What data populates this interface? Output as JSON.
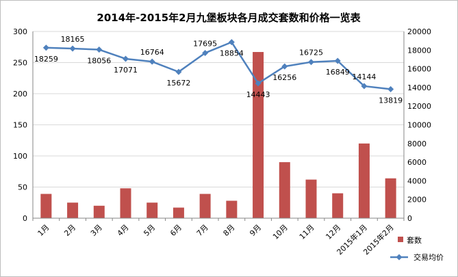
{
  "chart_data": {
    "type": "bar+line",
    "title": "2014年-2015年2月九堡板块各月成交套数和价格一览表",
    "categories": [
      "1月",
      "2月",
      "3月",
      "4月",
      "5月",
      "6月",
      "7月",
      "8月",
      "9月",
      "10月",
      "11月",
      "12月",
      "2015年1月",
      "2015年2月"
    ],
    "series": [
      {
        "name": "套数",
        "type": "bar",
        "axis": "left",
        "color": "#c0504d",
        "values": [
          39,
          25,
          20,
          48,
          25,
          17,
          39,
          28,
          267,
          90,
          62,
          40,
          120,
          64
        ]
      },
      {
        "name": "交易均价",
        "type": "line",
        "axis": "right",
        "color": "#4f81bd",
        "values": [
          18259,
          18165,
          18056,
          17071,
          16764,
          15672,
          17695,
          18854,
          14443,
          16256,
          16725,
          16849,
          14144,
          13819
        ]
      }
    ],
    "y_left": {
      "min": 0,
      "max": 300,
      "step": 50,
      "ticks": [
        "0",
        "50",
        "100",
        "150",
        "200",
        "250",
        "300"
      ]
    },
    "y_right": {
      "min": 0,
      "max": 20000,
      "step": 2000,
      "ticks": [
        "0",
        "2000",
        "4000",
        "6000",
        "8000",
        "10000",
        "12000",
        "14000",
        "16000",
        "18000",
        "20000"
      ]
    },
    "grid": true,
    "legend_position": "right",
    "data_labels": [
      "18259",
      "18165",
      "18056",
      "17071",
      "16764",
      "15672",
      "17695",
      "18854",
      "14443",
      "16256",
      "16725",
      "16849",
      "14144",
      "13819"
    ]
  }
}
